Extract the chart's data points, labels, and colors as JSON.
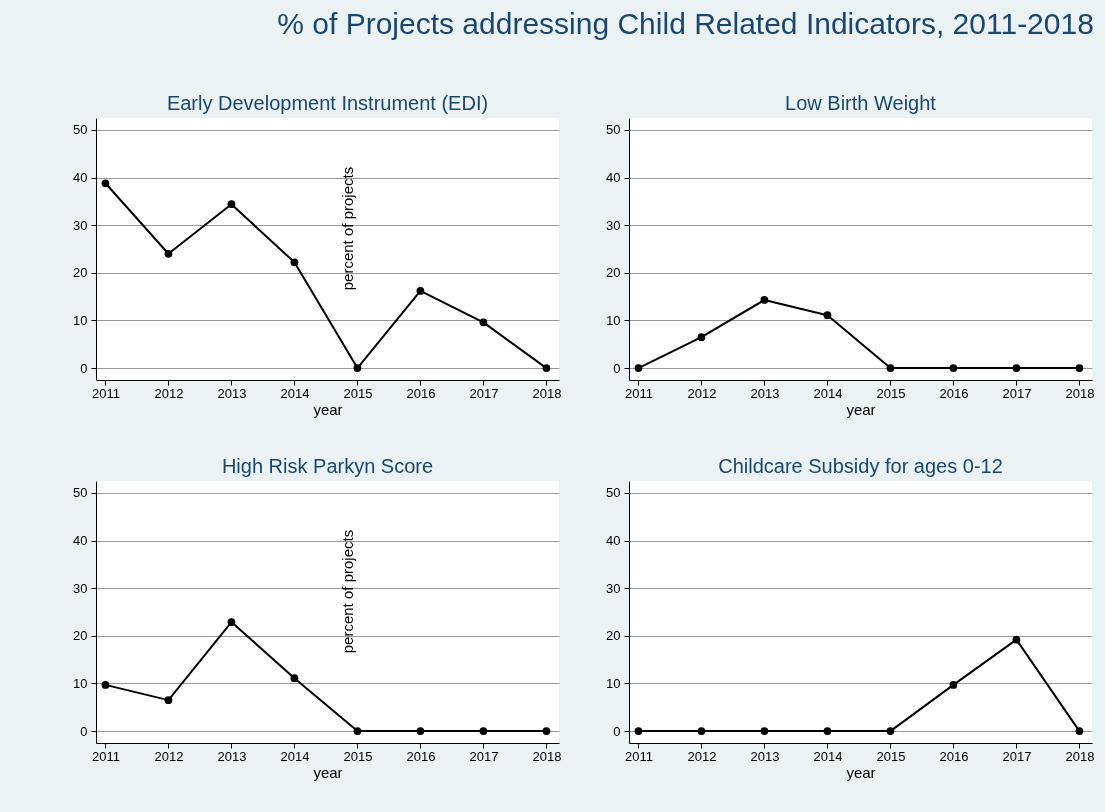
{
  "chart_data": [
    {
      "type": "line",
      "title": "% of Projects addressing Child Related Indicators, 2011-2018",
      "subtitle": "Early Development Instrument (EDI)",
      "xlabel": "year",
      "ylabel": "percent of projects",
      "x": [
        2011,
        2012,
        2013,
        2014,
        2015,
        2016,
        2017,
        2018
      ],
      "series": [
        {
          "color": "#000000",
          "values": [
            38.8,
            24,
            34.4,
            22.2,
            0,
            16.2,
            9.6,
            0
          ]
        }
      ],
      "xlim": [
        2010.85,
        2018.2
      ],
      "xticks": [
        2011,
        2012,
        2013,
        2014,
        2015,
        2016,
        2017,
        2018
      ],
      "ylim": [
        -2.5,
        52.5
      ],
      "yticks": [
        0,
        10,
        20,
        30,
        40,
        50
      ],
      "grid": "y",
      "marker": "circle",
      "line_style": "solid"
    },
    {
      "type": "line",
      "subtitle": "Low Birth Weight",
      "xlabel": "year",
      "x": [
        2011,
        2012,
        2013,
        2014,
        2015,
        2016,
        2017,
        2018
      ],
      "series": [
        {
          "color": "#000000",
          "values": [
            0,
            6.5,
            14.3,
            11.1,
            0,
            0,
            0,
            0
          ]
        }
      ],
      "xlim": [
        2010.85,
        2018.2
      ],
      "xticks": [
        2011,
        2012,
        2013,
        2014,
        2015,
        2016,
        2017,
        2018
      ],
      "ylim": [
        -2.5,
        52.5
      ],
      "yticks": [
        0,
        10,
        20,
        30,
        40,
        50
      ],
      "grid": "y",
      "marker": "circle",
      "line_style": "solid"
    },
    {
      "type": "line",
      "subtitle": "High Risk Parkyn Score",
      "xlabel": "year",
      "ylabel": "percent of projects",
      "x": [
        2011,
        2012,
        2013,
        2014,
        2015,
        2016,
        2017,
        2018
      ],
      "series": [
        {
          "color": "#000000",
          "values": [
            9.7,
            6.5,
            22.9,
            11.1,
            0,
            0,
            0,
            0
          ]
        }
      ],
      "xlim": [
        2010.85,
        2018.2
      ],
      "xticks": [
        2011,
        2012,
        2013,
        2014,
        2015,
        2016,
        2017,
        2018
      ],
      "ylim": [
        -2.5,
        52.5
      ],
      "yticks": [
        0,
        10,
        20,
        30,
        40,
        50
      ],
      "grid": "y",
      "marker": "circle",
      "line_style": "solid"
    },
    {
      "type": "line",
      "subtitle": "Childcare Subsidy for ages 0-12",
      "xlabel": "year",
      "x": [
        2011,
        2012,
        2013,
        2014,
        2015,
        2016,
        2017,
        2018
      ],
      "series": [
        {
          "color": "#000000",
          "values": [
            0,
            0,
            0,
            0,
            0,
            9.7,
            19.2,
            0
          ]
        }
      ],
      "xlim": [
        2010.85,
        2018.2
      ],
      "xticks": [
        2011,
        2012,
        2013,
        2014,
        2015,
        2016,
        2017,
        2018
      ],
      "ylim": [
        -2.5,
        52.5
      ],
      "yticks": [
        0,
        10,
        20,
        30,
        40,
        50
      ],
      "grid": "y",
      "marker": "circle",
      "line_style": "solid"
    }
  ]
}
